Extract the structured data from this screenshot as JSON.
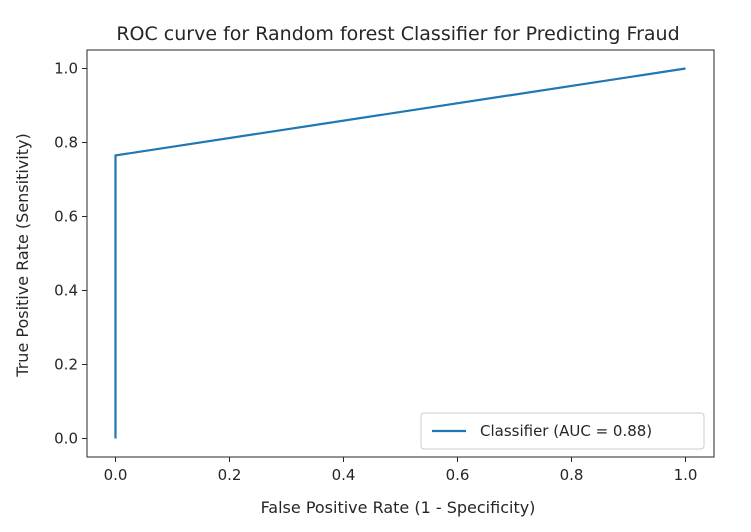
{
  "chart_data": {
    "type": "line",
    "title": "ROC curve for Random forest Classifier for Predicting Fraud",
    "xlabel": "False Positive Rate (1 - Specificity)",
    "ylabel": "True Positive Rate (Sensitivity)",
    "xlim": [
      -0.05,
      1.05
    ],
    "ylim": [
      -0.05,
      1.05
    ],
    "xticks": [
      "0.0",
      "0.2",
      "0.4",
      "0.6",
      "0.8",
      "1.0"
    ],
    "yticks": [
      "0.0",
      "0.2",
      "0.4",
      "0.6",
      "0.8",
      "1.0"
    ],
    "grid": false,
    "legend_position": "bottom-right",
    "series": [
      {
        "name": "Classifier (AUC = 0.88)",
        "color": "#1f77b4",
        "x": [
          0.0,
          0.0,
          1.0
        ],
        "y": [
          0.0,
          0.765,
          1.0
        ]
      }
    ]
  }
}
